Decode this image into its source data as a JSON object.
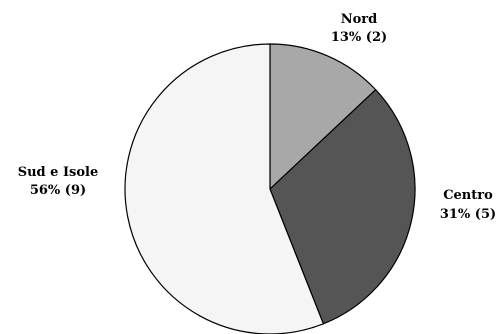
{
  "chart_data": {
    "type": "pie",
    "title": "",
    "start_angle_deg": 0,
    "direction": "clockwise",
    "slices": [
      {
        "label": "Nord",
        "value_text": "13% (2)",
        "percent": 13,
        "count": 2,
        "color": "#a8a8a8"
      },
      {
        "label": "Centro",
        "value_text": "31% (5)",
        "percent": 31,
        "count": 5,
        "color": "#555555"
      },
      {
        "label": "Sud e Isole",
        "value_text": "56% (9)",
        "percent": 56,
        "count": 9,
        "color": "#f5f5f5"
      }
    ],
    "stroke_color": "#000000"
  }
}
